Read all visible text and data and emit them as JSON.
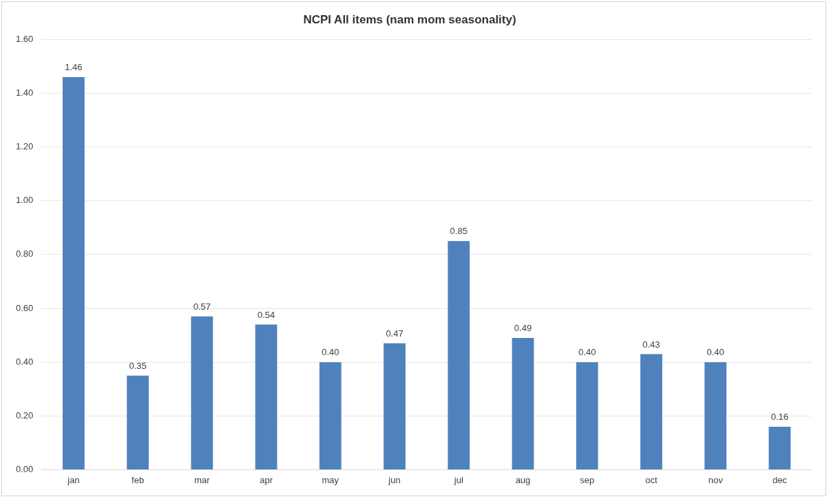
{
  "chart_data": {
    "type": "bar",
    "title": "NCPI All items (nam mom seasonality)",
    "categories": [
      "jan",
      "feb",
      "mar",
      "apr",
      "may",
      "jun",
      "jul",
      "aug",
      "sep",
      "oct",
      "nov",
      "dec"
    ],
    "values": [
      1.46,
      0.35,
      0.57,
      0.54,
      0.4,
      0.47,
      0.85,
      0.49,
      0.4,
      0.43,
      0.4,
      0.16
    ],
    "value_labels": [
      "1.46",
      "0.35",
      "0.57",
      "0.54",
      "0.40",
      "0.47",
      "0.85",
      "0.49",
      "0.40",
      "0.43",
      "0.40",
      "0.16"
    ],
    "color": "#4f81bd",
    "ylim": [
      0,
      1.6
    ],
    "yticks": [
      {
        "value": 0,
        "label": "0.00"
      },
      {
        "value": 0.2,
        "label": "0.20"
      },
      {
        "value": 0.4,
        "label": "0.40"
      },
      {
        "value": 0.6,
        "label": "0.60"
      },
      {
        "value": 0.8,
        "label": "0.80"
      },
      {
        "value": 1.0,
        "label": "1.00"
      },
      {
        "value": 1.2,
        "label": "1.20"
      },
      {
        "value": 1.4,
        "label": "1.40"
      },
      {
        "value": 1.6,
        "label": "1.60"
      }
    ],
    "grid": "y",
    "legend": false
  }
}
